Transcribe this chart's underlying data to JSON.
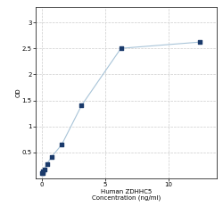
{
  "x": [
    0.0,
    0.049,
    0.098,
    0.195,
    0.39,
    0.781,
    1.563,
    3.125,
    6.25,
    12.5
  ],
  "y": [
    0.098,
    0.105,
    0.13,
    0.18,
    0.28,
    0.42,
    0.65,
    1.4,
    2.5,
    2.62
  ],
  "line_color": "#a8c4d8",
  "marker_color": "#1a3a6b",
  "marker_size": 3,
  "xlabel_line1": "Human ZDHHC5",
  "xlabel_line2": "Concentration (ng/ml)",
  "ylabel": "OD",
  "xlim": [
    -0.5,
    13.8
  ],
  "ylim": [
    0.0,
    3.3
  ],
  "yticks": [
    0.5,
    1.0,
    1.5,
    2.0,
    2.5,
    3.0
  ],
  "ytick_labels": [
    "0.5",
    "1",
    "1.5",
    "2",
    "2.5",
    "3"
  ],
  "xticks": [
    0,
    5,
    10
  ],
  "xtick_labels": [
    "0",
    "5",
    "10"
  ],
  "grid_color": "#cccccc",
  "fig_bg_color": "#ffffff",
  "plot_area_bg": "#ffffff",
  "label_fontsize": 5.0,
  "tick_fontsize": 5.0
}
